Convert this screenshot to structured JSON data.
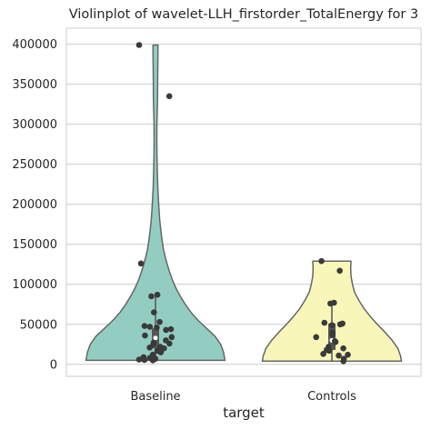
{
  "chart_data": {
    "type": "violin",
    "title": "Violinplot of wavelet-LLH_firstorder_TotalEnergy for 3",
    "xlabel": "target",
    "ylabel": "",
    "categories": [
      "Baseline",
      "Controls"
    ],
    "ylim": [
      -15000,
      420000
    ],
    "yticks": [
      0,
      50000,
      100000,
      150000,
      200000,
      250000,
      300000,
      350000,
      400000
    ],
    "grid": true,
    "series": [
      {
        "category": "Baseline",
        "color": "#93cdc2",
        "box": {
          "q1": 20000,
          "median": 33000,
          "q3": 45000,
          "whisker_low": 5000,
          "whisker_high": 86000
        },
        "density": [
          [
            5000,
            0.98
          ],
          [
            15000,
            0.96
          ],
          [
            25000,
            0.92
          ],
          [
            35000,
            0.84
          ],
          [
            45000,
            0.72
          ],
          [
            55000,
            0.6
          ],
          [
            65000,
            0.5
          ],
          [
            75000,
            0.42
          ],
          [
            85000,
            0.35
          ],
          [
            95000,
            0.29
          ],
          [
            105000,
            0.24
          ],
          [
            115000,
            0.2
          ],
          [
            125000,
            0.165
          ],
          [
            135000,
            0.135
          ],
          [
            145000,
            0.11
          ],
          [
            160000,
            0.085
          ],
          [
            180000,
            0.06
          ],
          [
            200000,
            0.045
          ],
          [
            220000,
            0.033
          ],
          [
            240000,
            0.026
          ],
          [
            260000,
            0.021
          ],
          [
            280000,
            0.019
          ],
          [
            300000,
            0.02
          ],
          [
            320000,
            0.026
          ],
          [
            335000,
            0.03
          ],
          [
            350000,
            0.03
          ],
          [
            365000,
            0.032
          ],
          [
            380000,
            0.034
          ],
          [
            390000,
            0.035
          ],
          [
            399000,
            0.035
          ]
        ],
        "points": [
          399000,
          335000,
          126000,
          87000,
          85000,
          65000,
          53000,
          48000,
          47000,
          46000,
          44000,
          43000,
          36000,
          34000,
          30000,
          27000,
          26000,
          25000,
          22000,
          21000,
          20000,
          17000,
          15000,
          12000,
          9000,
          8000,
          7000,
          6000,
          5500,
          5000
        ]
      },
      {
        "category": "Controls",
        "color": "#f8f7b9",
        "box": {
          "q1": 18000,
          "median": 30000,
          "q3": 51000,
          "whisker_low": 4000,
          "whisker_high": 77000
        },
        "density": [
          [
            4000,
            0.98
          ],
          [
            10000,
            0.97
          ],
          [
            20000,
            0.93
          ],
          [
            30000,
            0.85
          ],
          [
            40000,
            0.75
          ],
          [
            50000,
            0.64
          ],
          [
            60000,
            0.54
          ],
          [
            70000,
            0.45
          ],
          [
            80000,
            0.38
          ],
          [
            90000,
            0.32
          ],
          [
            100000,
            0.29
          ],
          [
            110000,
            0.27
          ],
          [
            120000,
            0.265
          ],
          [
            129000,
            0.27
          ]
        ],
        "points": [
          129000,
          117000,
          77000,
          76000,
          52000,
          51000,
          50000,
          49000,
          40000,
          37000,
          34000,
          29000,
          28000,
          22000,
          20000,
          18000,
          17000,
          13000,
          12000,
          11000,
          7000,
          4000
        ]
      }
    ]
  }
}
